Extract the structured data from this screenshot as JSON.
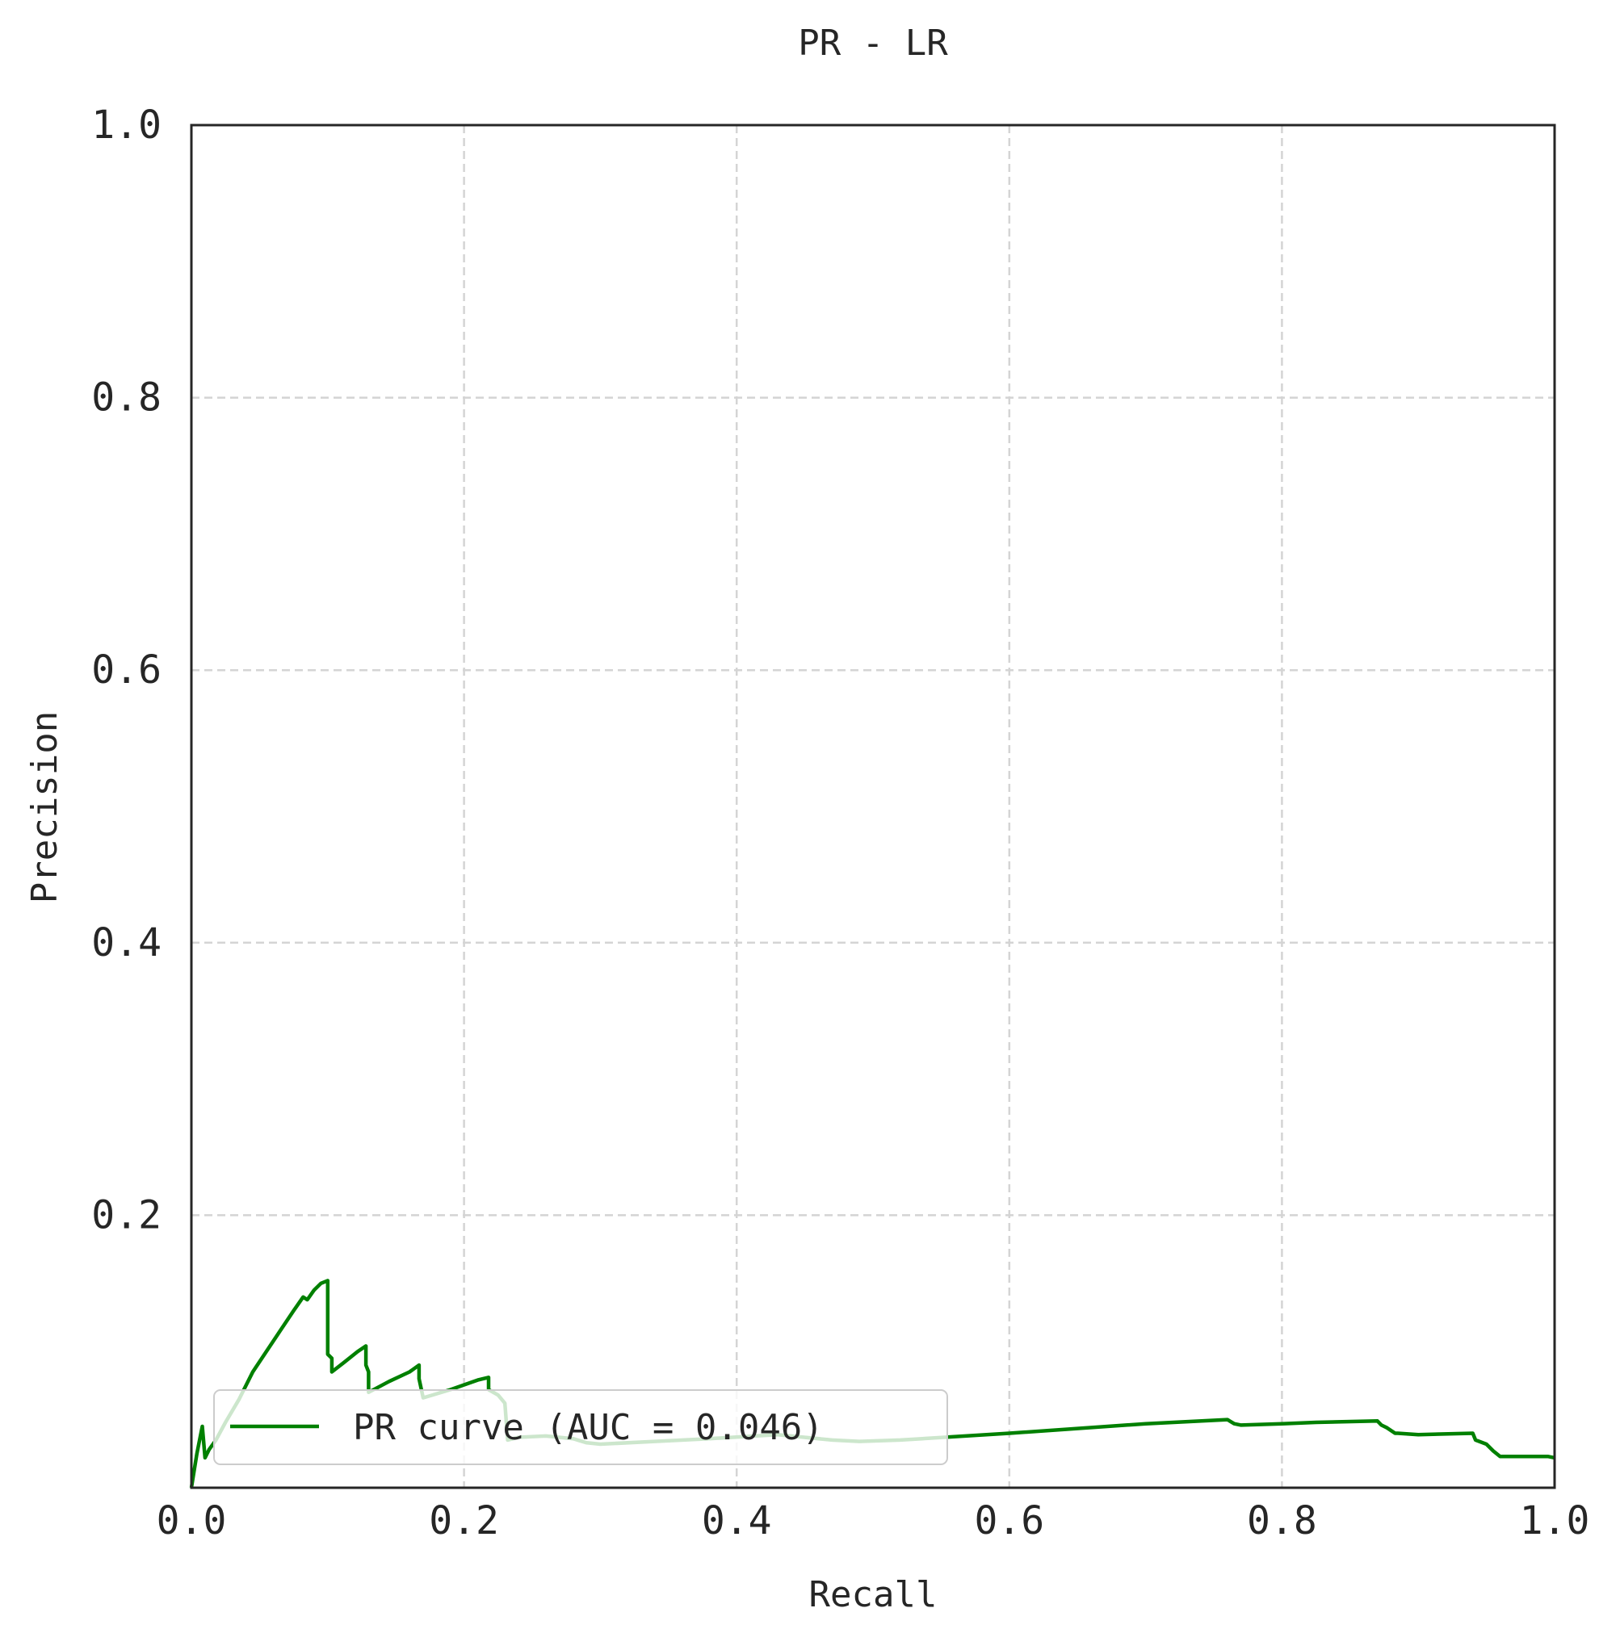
{
  "chart_data": {
    "type": "line",
    "title": "PR - LR",
    "xlabel": "Recall",
    "ylabel": "Precision",
    "xlim": [
      0.0,
      1.0
    ],
    "ylim": [
      0.0,
      1.0
    ],
    "x_ticks": [
      "0.0",
      "0.2",
      "0.4",
      "0.6",
      "0.8",
      "1.0"
    ],
    "y_ticks": [
      "0.2",
      "0.4",
      "0.6",
      "0.8",
      "1.0"
    ],
    "grid": true,
    "legend_position": "lower-left",
    "series": [
      {
        "name": "PR curve (AUC = 0.046)",
        "color": "#008000",
        "x": [
          0.0,
          0.004,
          0.008,
          0.01,
          0.013,
          0.018,
          0.025,
          0.035,
          0.045,
          0.055,
          0.065,
          0.075,
          0.082,
          0.085,
          0.09,
          0.095,
          0.1,
          0.1,
          0.103,
          0.103,
          0.112,
          0.122,
          0.128,
          0.128,
          0.13,
          0.13,
          0.145,
          0.16,
          0.167,
          0.167,
          0.17,
          0.19,
          0.21,
          0.218,
          0.218,
          0.225,
          0.23,
          0.232,
          0.24,
          0.26,
          0.28,
          0.29,
          0.3,
          0.34,
          0.38,
          0.43,
          0.47,
          0.49,
          0.52,
          0.6,
          0.7,
          0.76,
          0.765,
          0.77,
          0.8,
          0.825,
          0.87,
          0.873,
          0.877,
          0.883,
          0.885,
          0.9,
          0.94,
          0.942,
          0.95,
          0.955,
          0.96,
          0.995,
          1.0
        ],
        "y": [
          0.0,
          0.025,
          0.045,
          0.022,
          0.028,
          0.035,
          0.048,
          0.065,
          0.085,
          0.1,
          0.115,
          0.13,
          0.14,
          0.138,
          0.145,
          0.15,
          0.152,
          0.098,
          0.095,
          0.085,
          0.092,
          0.1,
          0.104,
          0.09,
          0.085,
          0.07,
          0.078,
          0.085,
          0.09,
          0.08,
          0.066,
          0.072,
          0.079,
          0.081,
          0.072,
          0.068,
          0.062,
          0.035,
          0.037,
          0.038,
          0.036,
          0.033,
          0.032,
          0.034,
          0.036,
          0.039,
          0.035,
          0.034,
          0.035,
          0.04,
          0.047,
          0.05,
          0.047,
          0.046,
          0.047,
          0.048,
          0.049,
          0.046,
          0.044,
          0.04,
          0.04,
          0.039,
          0.04,
          0.035,
          0.032,
          0.027,
          0.023,
          0.023,
          0.022
        ]
      }
    ]
  }
}
